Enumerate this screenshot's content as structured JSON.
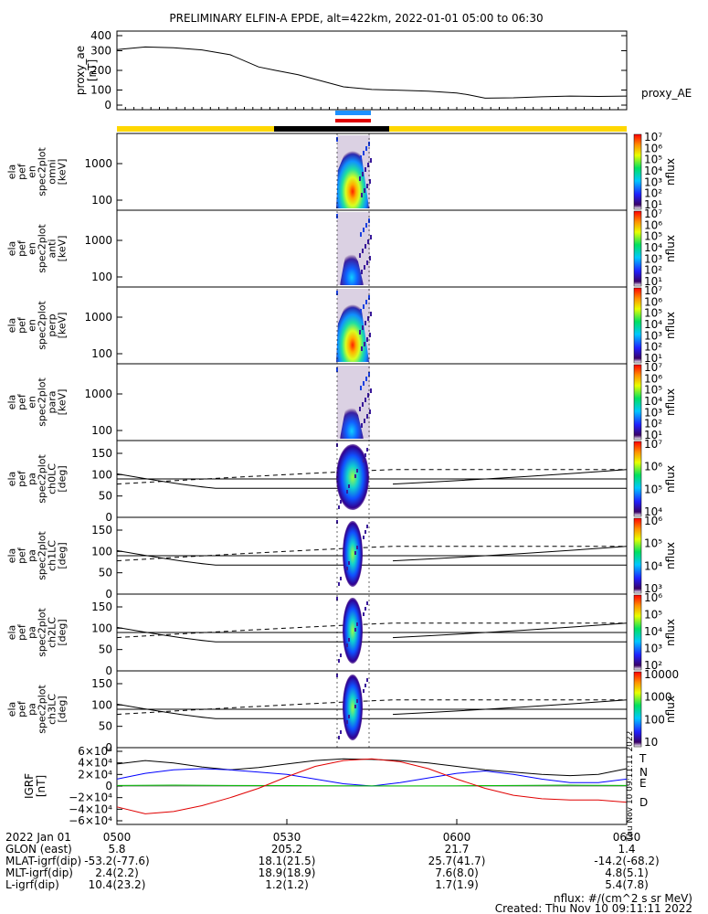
{
  "title": "PRELIMINARY ELFIN-A EPDE, alt=422km, 2022-01-01 05:00 to 06:30",
  "colors": {
    "state_bar_yellow": "#ffd700",
    "state_bar_black": "#000000",
    "marker_blue": "#1e90ff",
    "marker_red": "#e00000",
    "grf_T": "#000000",
    "grf_N": "#0000ff",
    "grf_E": "#00c000",
    "grf_D": "#e00000"
  },
  "chart_data": [
    {
      "type": "line",
      "name": "proxy_ae",
      "ylabel": "proxy_ae [nT]",
      "legend": "proxy_AE",
      "ylim": [
        0,
        400
      ],
      "yticks": [
        "400",
        "300",
        "200",
        "100",
        "0"
      ],
      "x_minutes": [
        0,
        5,
        10,
        15,
        20,
        25,
        28,
        32,
        36,
        40,
        45,
        50,
        55,
        60,
        62,
        65,
        70,
        75,
        80,
        85,
        90
      ],
      "values": [
        320,
        335,
        330,
        318,
        290,
        220,
        200,
        175,
        140,
        105,
        90,
        85,
        80,
        70,
        60,
        40,
        42,
        48,
        52,
        50,
        52
      ]
    },
    {
      "type": "heatmap",
      "name": "ela pef en spec2plot omni [keV]",
      "ylabel_lines": [
        "ela",
        "pef",
        "en",
        "spec2plot",
        "omni",
        "[keV]"
      ],
      "yscale": "log",
      "yticks": [
        "1000",
        "100"
      ],
      "colorbar": {
        "label": "nflux",
        "ticks": [
          "10⁷",
          "10⁶",
          "10⁵",
          "10⁴",
          "10³",
          "10²",
          "10¹"
        ]
      }
    },
    {
      "type": "heatmap",
      "name": "ela pef en spec2plot anti [keV]",
      "ylabel_lines": [
        "ela",
        "pef",
        "en",
        "spec2plot",
        "anti",
        "[keV]"
      ],
      "yscale": "log",
      "yticks": [
        "1000",
        "100"
      ],
      "colorbar": {
        "label": "nflux",
        "ticks": [
          "10⁷",
          "10⁶",
          "10⁵",
          "10⁴",
          "10³",
          "10²",
          "10¹"
        ]
      }
    },
    {
      "type": "heatmap",
      "name": "ela pef en spec2plot perp [keV]",
      "ylabel_lines": [
        "ela",
        "pef",
        "en",
        "spec2plot",
        "perp",
        "[keV]"
      ],
      "yscale": "log",
      "yticks": [
        "1000",
        "100"
      ],
      "colorbar": {
        "label": "nflux",
        "ticks": [
          "10⁷",
          "10⁶",
          "10⁵",
          "10⁴",
          "10³",
          "10²",
          "10¹"
        ]
      }
    },
    {
      "type": "heatmap",
      "name": "ela pef en spec2plot para [keV]",
      "ylabel_lines": [
        "ela",
        "pef",
        "en",
        "spec2plot",
        "para",
        "[keV]"
      ],
      "yscale": "log",
      "yticks": [
        "1000",
        "100"
      ],
      "colorbar": {
        "label": "nflux",
        "ticks": [
          "10⁷",
          "10⁶",
          "10⁵",
          "10⁴",
          "10³",
          "10²",
          "10¹"
        ]
      }
    },
    {
      "type": "heatmap",
      "name": "ela pef pa spec2plot ch0LC [deg]",
      "ylabel_lines": [
        "ela",
        "pef",
        "pa",
        "spec2plot",
        "ch0LC",
        "[deg]"
      ],
      "ylim": [
        0,
        180
      ],
      "yticks": [
        "150",
        "100",
        "50",
        "0"
      ],
      "colorbar": {
        "label": "nflux",
        "ticks": [
          "10⁷",
          "10⁶",
          "10⁵",
          "10⁴"
        ]
      }
    },
    {
      "type": "heatmap",
      "name": "ela pef pa spec2plot ch1LC [deg]",
      "ylabel_lines": [
        "ela",
        "pef",
        "pa",
        "spec2plot",
        "ch1LC",
        "[deg]"
      ],
      "ylim": [
        0,
        180
      ],
      "yticks": [
        "150",
        "100",
        "50",
        "0"
      ],
      "colorbar": {
        "label": "nflux",
        "ticks": [
          "10⁶",
          "10⁵",
          "10⁴",
          "10³"
        ]
      }
    },
    {
      "type": "heatmap",
      "name": "ela pef pa spec2plot ch2LC [deg]",
      "ylabel_lines": [
        "ela",
        "pef",
        "pa",
        "spec2plot",
        "ch2LC",
        "[deg]"
      ],
      "ylim": [
        0,
        180
      ],
      "yticks": [
        "150",
        "100",
        "50",
        "0"
      ],
      "colorbar": {
        "label": "nflux",
        "ticks": [
          "10⁶",
          "10⁵",
          "10⁴",
          "10³",
          "10²"
        ]
      }
    },
    {
      "type": "heatmap",
      "name": "ela pef pa spec2plot ch3LC [deg]",
      "ylabel_lines": [
        "ela",
        "pef",
        "pa",
        "spec2plot",
        "ch3LC",
        "[deg]"
      ],
      "ylim": [
        0,
        180
      ],
      "yticks": [
        "150",
        "100",
        "50",
        "0"
      ],
      "colorbar": {
        "label": "nflux",
        "ticks": [
          "10000",
          "1000",
          "100",
          "10"
        ]
      }
    },
    {
      "type": "line",
      "name": "IGRF [nT]",
      "ylabel_lines": [
        "IGRF",
        "[nT]"
      ],
      "ylim": [
        -60000,
        60000
      ],
      "yticks": [
        "6×10⁴",
        "4×10⁴",
        "2×10⁴",
        "0",
        "−2×10⁴",
        "−4×10⁴",
        "−6×10⁴"
      ],
      "legend": [
        "T",
        "N",
        "E",
        "D"
      ],
      "series": [
        {
          "name": "T",
          "x_minutes": [
            0,
            5,
            10,
            15,
            20,
            25,
            30,
            35,
            40,
            45,
            50,
            55,
            60,
            65,
            70,
            75,
            80,
            85,
            90
          ],
          "values": [
            38000,
            44000,
            40000,
            33000,
            28000,
            32000,
            38000,
            44000,
            47000,
            46000,
            44000,
            40000,
            34000,
            28000,
            24000,
            20000,
            18000,
            20000,
            30000
          ]
        },
        {
          "name": "N",
          "x_minutes": [
            0,
            5,
            10,
            15,
            20,
            25,
            30,
            35,
            40,
            45,
            50,
            55,
            60,
            65,
            70,
            75,
            80,
            85,
            90
          ],
          "values": [
            12000,
            22000,
            28000,
            30000,
            28000,
            24000,
            20000,
            12000,
            4000,
            0,
            6000,
            14000,
            22000,
            26000,
            20000,
            12000,
            6000,
            6000,
            12000
          ]
        },
        {
          "name": "E",
          "x_minutes": [
            0,
            10,
            20,
            30,
            40,
            50,
            60,
            70,
            80,
            90
          ],
          "values": [
            1000,
            1500,
            1000,
            800,
            300,
            200,
            500,
            1000,
            1500,
            1000
          ]
        },
        {
          "name": "D",
          "x_minutes": [
            0,
            5,
            10,
            15,
            20,
            25,
            30,
            35,
            40,
            45,
            50,
            55,
            60,
            65,
            70,
            75,
            80,
            85,
            90
          ],
          "values": [
            -36000,
            -48000,
            -44000,
            -34000,
            -20000,
            -4000,
            16000,
            34000,
            44000,
            47000,
            42000,
            30000,
            12000,
            -4000,
            -16000,
            -22000,
            -24000,
            -24000,
            -28000
          ]
        }
      ]
    }
  ],
  "xaxis": {
    "date_label": "2022 Jan 01",
    "ticks": [
      "0500",
      "0530",
      "0600",
      "0630"
    ]
  },
  "ephemeris": [
    {
      "label": "GLON (east)",
      "values": [
        "5.8",
        "205.2",
        "21.7",
        "1.4"
      ]
    },
    {
      "label": "MLAT-igrf(dip)",
      "values": [
        "-53.2(-77.6)",
        "18.1(21.5)",
        "25.7(41.7)",
        "-14.2(-68.2)"
      ]
    },
    {
      "label": "MLT-igrf(dip)",
      "values": [
        "2.4(2.2)",
        "18.9(18.9)",
        "7.6(8.0)",
        "4.8(5.1)"
      ]
    },
    {
      "label": "L-igrf(dip)",
      "values": [
        "10.4(23.2)",
        "1.2(1.2)",
        "1.7(1.9)",
        "5.4(7.8)"
      ]
    }
  ],
  "footer": {
    "units": "nflux: #/(cm^2 s sr MeV)",
    "created": "Created: Thu Nov 10 09:11:11 2022",
    "vertical_stamp": "Thu Nov 10 09:11:11 2022"
  }
}
